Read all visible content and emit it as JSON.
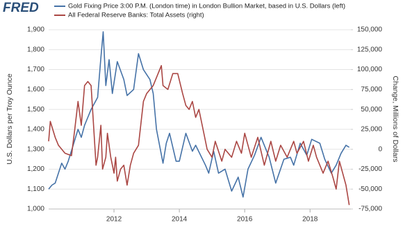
{
  "logo": "FRED",
  "chart_data": {
    "type": "line",
    "y_label": "U.S. Dollars per Troy Ounce",
    "y2_label": "Change, Millions of Dollars",
    "xlim": [
      2010,
      2019.25
    ],
    "xticks": [
      2012,
      2014,
      2016,
      2018
    ],
    "ylim": [
      1000,
      1900
    ],
    "yticks": [
      {
        "value": 1000,
        "label": "1,000"
      },
      {
        "value": 1100,
        "label": "1,100"
      },
      {
        "value": 1200,
        "label": "1,200"
      },
      {
        "value": 1300,
        "label": "1,300"
      },
      {
        "value": 1400,
        "label": "1,400"
      },
      {
        "value": 1500,
        "label": "1,500"
      },
      {
        "value": 1600,
        "label": "1,600"
      },
      {
        "value": 1700,
        "label": "1,700"
      },
      {
        "value": 1800,
        "label": "1,800"
      },
      {
        "value": 1900,
        "label": "1,900"
      }
    ],
    "y2lim": [
      -75000,
      150000
    ],
    "y2ticks": [
      {
        "value": -75000,
        "label": "-75,000"
      },
      {
        "value": -50000,
        "label": "-50,000"
      },
      {
        "value": -25000,
        "label": "-25,000"
      },
      0,
      {
        "value": 25000,
        "label": "25,000"
      },
      {
        "value": 50000,
        "label": "50,000"
      },
      {
        "value": 75000,
        "label": "75,000"
      },
      {
        "value": 100000,
        "label": "100,000"
      },
      {
        "value": 125000,
        "label": "125,000"
      },
      {
        "value": 150000,
        "label": "150,000"
      }
    ],
    "grid": true,
    "series": [
      {
        "name": "Gold Fixing Price 3:00 P.M. (London time) in London Bullion Market, based in U.S. Dollars (left)",
        "color": "#4572a7",
        "axis": "y",
        "x": [
          2010.0,
          2010.1,
          2010.2,
          2010.4,
          2010.5,
          2010.6,
          2010.75,
          2010.9,
          2011.0,
          2011.1,
          2011.3,
          2011.4,
          2011.5,
          2011.6,
          2011.67,
          2011.75,
          2011.85,
          2011.95,
          2012.1,
          2012.3,
          2012.4,
          2012.6,
          2012.75,
          2012.9,
          2013.1,
          2013.2,
          2013.3,
          2013.5,
          2013.6,
          2013.7,
          2013.9,
          2014.0,
          2014.2,
          2014.4,
          2014.5,
          2014.8,
          2014.9,
          2015.05,
          2015.2,
          2015.4,
          2015.6,
          2015.8,
          2015.95,
          2016.1,
          2016.3,
          2016.5,
          2016.75,
          2016.95,
          2017.2,
          2017.4,
          2017.5,
          2017.7,
          2017.9,
          2018.05,
          2018.3,
          2018.45,
          2018.65,
          2018.8,
          2018.95,
          2019.1,
          2019.2
        ],
        "values": [
          1100,
          1120,
          1130,
          1230,
          1200,
          1240,
          1320,
          1400,
          1360,
          1420,
          1500,
          1530,
          1560,
          1760,
          1890,
          1620,
          1750,
          1580,
          1740,
          1650,
          1570,
          1600,
          1780,
          1700,
          1650,
          1580,
          1400,
          1230,
          1330,
          1380,
          1240,
          1240,
          1380,
          1290,
          1320,
          1220,
          1180,
          1290,
          1180,
          1200,
          1090,
          1160,
          1060,
          1200,
          1270,
          1360,
          1260,
          1130,
          1250,
          1260,
          1220,
          1330,
          1270,
          1350,
          1330,
          1250,
          1180,
          1220,
          1280,
          1320,
          1310
        ]
      },
      {
        "name": "All Federal Reserve Banks: Total Assets (right)",
        "color": "#aa4643",
        "axis": "y2",
        "x": [
          2010.0,
          2010.05,
          2010.2,
          2010.3,
          2010.5,
          2010.7,
          2010.8,
          2010.9,
          2011.0,
          2011.1,
          2011.2,
          2011.3,
          2011.45,
          2011.5,
          2011.6,
          2011.65,
          2011.75,
          2011.8,
          2011.9,
          2012.0,
          2012.05,
          2012.1,
          2012.2,
          2012.3,
          2012.4,
          2012.5,
          2012.6,
          2012.75,
          2012.9,
          2013.0,
          2013.2,
          2013.3,
          2013.45,
          2013.5,
          2013.65,
          2013.8,
          2013.95,
          2014.1,
          2014.2,
          2014.3,
          2014.4,
          2014.5,
          2014.6,
          2014.75,
          2014.85,
          2015.0,
          2015.1,
          2015.3,
          2015.4,
          2015.6,
          2015.75,
          2015.9,
          2016.0,
          2016.2,
          2016.4,
          2016.6,
          2016.8,
          2016.95,
          2017.1,
          2017.3,
          2017.5,
          2017.6,
          2017.8,
          2017.95,
          2018.1,
          2018.2,
          2018.4,
          2018.55,
          2018.7,
          2018.8,
          2018.9,
          2019.0,
          2019.1,
          2019.2
        ],
        "values": [
          10000,
          35000,
          15000,
          5000,
          -5000,
          -8000,
          25000,
          60000,
          30000,
          80000,
          85000,
          80000,
          -20000,
          -10000,
          30000,
          -25000,
          -10000,
          20000,
          -10000,
          -30000,
          -10000,
          -40000,
          -25000,
          -20000,
          -45000,
          -20000,
          -5000,
          5000,
          60000,
          70000,
          80000,
          90000,
          105000,
          80000,
          75000,
          95000,
          95000,
          70000,
          55000,
          50000,
          60000,
          40000,
          50000,
          20000,
          0,
          -10000,
          10000,
          -15000,
          0,
          -10000,
          10000,
          -5000,
          20000,
          -10000,
          15000,
          -20000,
          10000,
          -15000,
          5000,
          -10000,
          10000,
          -5000,
          10000,
          -15000,
          5000,
          -10000,
          -30000,
          -15000,
          -35000,
          -50000,
          -15000,
          -30000,
          -45000,
          -70000
        ]
      }
    ]
  }
}
